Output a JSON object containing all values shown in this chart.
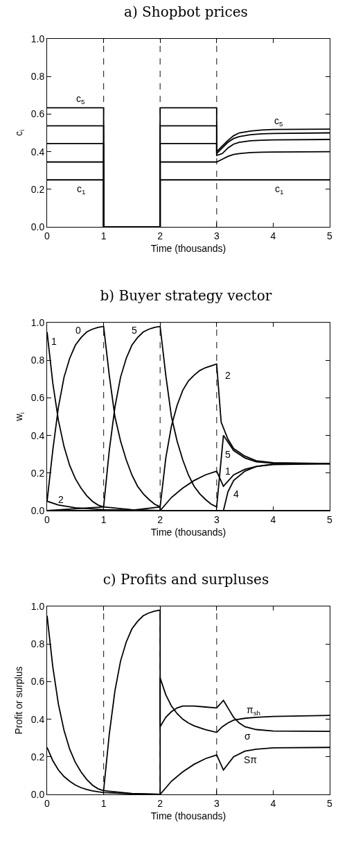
{
  "chart_data": [
    {
      "type": "line",
      "title": "a) Shopbot prices",
      "xlabel": "Time (thousands)",
      "ylabel": "c$_{i}$",
      "xlim": [
        0,
        5
      ],
      "xticks": [
        0,
        1,
        2,
        3,
        4,
        5
      ],
      "ylim": [
        0,
        1
      ],
      "yticks": [
        {
          "value": 0,
          "label": "0.0"
        },
        {
          "value": 0.2,
          "label": "0.2"
        },
        {
          "value": 0.4,
          "label": "0.4"
        },
        {
          "value": 0.6,
          "label": "0.6"
        },
        {
          "value": 0.8,
          "label": "0.8"
        },
        {
          "value": 1,
          "label": "1.0"
        }
      ],
      "series": [
        {
          "color": "#000000",
          "x": [
            0,
            1,
            1,
            2,
            2,
            3,
            3,
            3.1,
            3.2,
            3.3,
            3.4,
            3.6,
            3.8,
            4,
            5
          ],
          "values": [
            0.633,
            0.633,
            0,
            0,
            0.633,
            0.633,
            0.4,
            0.43,
            0.46,
            0.485,
            0.5,
            0.51,
            0.515,
            0.518,
            0.52
          ]
        },
        {
          "color": "#000000",
          "x": [
            0,
            1,
            1,
            2,
            2,
            3,
            3,
            3.1,
            3.2,
            3.3,
            3.4,
            3.6,
            3.8,
            4,
            5
          ],
          "values": [
            0.537,
            0.537,
            0,
            0,
            0.537,
            0.537,
            0.39,
            0.42,
            0.45,
            0.47,
            0.48,
            0.49,
            0.495,
            0.497,
            0.5
          ]
        },
        {
          "color": "#000000",
          "x": [
            0,
            1,
            1,
            2,
            2,
            3,
            3,
            3.1,
            3.2,
            3.3,
            3.4,
            3.6,
            3.8,
            4,
            5
          ],
          "values": [
            0.443,
            0.443,
            0,
            0,
            0.443,
            0.443,
            0.38,
            0.39,
            0.42,
            0.44,
            0.45,
            0.458,
            0.461,
            0.463,
            0.465
          ]
        },
        {
          "color": "#000000",
          "x": [
            0,
            1,
            1,
            2,
            2,
            3,
            3,
            3.1,
            3.2,
            3.3,
            3.4,
            3.6,
            3.8,
            4,
            5
          ],
          "values": [
            0.345,
            0.345,
            0,
            0,
            0.345,
            0.345,
            0.345,
            0.36,
            0.375,
            0.385,
            0.39,
            0.395,
            0.397,
            0.398,
            0.4
          ]
        },
        {
          "color": "#000000",
          "x": [
            0,
            1,
            1,
            2,
            2,
            5
          ],
          "values": [
            0.25,
            0.25,
            0,
            0,
            0.25,
            0.25
          ]
        }
      ],
      "ref_lines": [
        {
          "axis": "x",
          "value": 1,
          "line_style": "dashed",
          "color": "#333333"
        },
        {
          "axis": "x",
          "value": 2,
          "line_style": "dashed",
          "color": "#333333"
        },
        {
          "axis": "x",
          "value": 3,
          "line_style": "dashed",
          "color": "#333333"
        }
      ],
      "annotations": [
        "c$_{5}$",
        "c$_{1}$",
        "c$_{5}$",
        "c$_{1}$"
      ]
    },
    {
      "type": "line",
      "title": "b) Buyer strategy vector",
      "xlabel": "Time (thousands)",
      "ylabel": "w$_{i}$",
      "xlim": [
        0,
        5
      ],
      "xticks": [
        0,
        1,
        2,
        3,
        4,
        5
      ],
      "ylim": [
        0,
        1
      ],
      "yticks": [
        {
          "value": 0,
          "label": "0.0"
        },
        {
          "value": 0.2,
          "label": "0.2"
        },
        {
          "value": 0.4,
          "label": "0.4"
        },
        {
          "value": 0.6,
          "label": "0.6"
        },
        {
          "value": 0.8,
          "label": "0.8"
        },
        {
          "value": 1,
          "label": "1.0"
        }
      ],
      "series": [
        {
          "color": "#000000",
          "x": [
            0,
            0.1,
            0.2,
            0.3,
            0.4,
            0.5,
            0.6,
            0.7,
            0.8,
            0.9,
            1,
            1.1,
            1.2,
            1.3,
            1.4,
            1.5,
            1.6,
            1.7,
            1.8,
            1.9,
            2,
            2,
            5
          ],
          "values": [
            0.05,
            0.32,
            0.55,
            0.71,
            0.81,
            0.88,
            0.92,
            0.95,
            0.965,
            0.975,
            0.98,
            0.72,
            0.5,
            0.37,
            0.27,
            0.19,
            0.13,
            0.09,
            0.06,
            0.035,
            0.02,
            0,
            0
          ]
        },
        {
          "color": "#000000",
          "x": [
            0,
            1,
            1.1,
            1.2,
            1.3,
            1.4,
            1.5,
            1.6,
            1.7,
            1.8,
            1.9,
            2,
            2.1,
            2.2,
            2.3,
            2.4,
            2.5,
            2.6,
            2.7,
            2.8,
            2.9,
            3,
            3.12,
            3.3,
            3.5,
            3.7,
            4,
            5
          ],
          "values": [
            0,
            0.02,
            0.32,
            0.55,
            0.71,
            0.81,
            0.88,
            0.92,
            0.95,
            0.965,
            0.975,
            0.98,
            0.72,
            0.5,
            0.37,
            0.27,
            0.19,
            0.13,
            0.09,
            0.06,
            0.035,
            0.02,
            0.4,
            0.32,
            0.28,
            0.26,
            0.252,
            0.25
          ]
        },
        {
          "color": "#000000",
          "x": [
            0,
            0.1,
            0.2,
            0.3,
            0.4,
            0.5,
            0.6,
            0.7,
            0.8,
            0.9,
            1,
            1.5,
            2,
            2.2,
            2.4,
            2.6,
            2.8,
            3,
            3.12,
            3.3,
            3.5,
            3.7,
            4,
            5
          ],
          "values": [
            0.95,
            0.68,
            0.48,
            0.34,
            0.24,
            0.17,
            0.12,
            0.08,
            0.05,
            0.03,
            0.02,
            0.005,
            0,
            0.07,
            0.12,
            0.16,
            0.19,
            0.21,
            0.13,
            0.19,
            0.22,
            0.235,
            0.245,
            0.25
          ]
        },
        {
          "color": "#000000",
          "x": [
            0,
            0.2,
            0.5,
            1,
            1.5,
            2,
            2.1,
            2.2,
            2.3,
            2.4,
            2.5,
            2.6,
            2.7,
            2.8,
            2.9,
            3,
            3.08,
            3.2,
            3.3,
            3.5,
            3.7,
            4,
            5
          ],
          "values": [
            0.05,
            0.03,
            0.015,
            0.005,
            0.002,
            0.02,
            0.28,
            0.45,
            0.56,
            0.64,
            0.69,
            0.72,
            0.745,
            0.76,
            0.77,
            0.78,
            0.47,
            0.38,
            0.33,
            0.29,
            0.265,
            0.255,
            0.25
          ]
        },
        {
          "color": "#000000",
          "x": [
            0,
            3.12,
            3.2,
            3.3,
            3.5,
            3.7,
            4,
            5
          ],
          "values": [
            0,
            0,
            0.1,
            0.16,
            0.21,
            0.235,
            0.248,
            0.25
          ]
        }
      ],
      "ref_lines": [
        {
          "axis": "x",
          "value": 1,
          "line_style": "dashed",
          "color": "#333333"
        },
        {
          "axis": "x",
          "value": 2,
          "line_style": "dashed",
          "color": "#333333"
        },
        {
          "axis": "x",
          "value": 3,
          "line_style": "dashed",
          "color": "#333333"
        }
      ],
      "annotations": [
        "1",
        "0",
        "5",
        "2",
        "2",
        "5",
        "1",
        "4"
      ]
    },
    {
      "type": "line",
      "title": "c) Profits and surpluses",
      "xlabel": "Time (thousands)",
      "ylabel": "Profit or surplus",
      "xlim": [
        0,
        5
      ],
      "xticks": [
        0,
        1,
        2,
        3,
        4,
        5
      ],
      "ylim": [
        0,
        1
      ],
      "yticks": [
        {
          "value": 0,
          "label": "0.0"
        },
        {
          "value": 0.2,
          "label": "0.2"
        },
        {
          "value": 0.4,
          "label": "0.4"
        },
        {
          "value": 0.6,
          "label": "0.6"
        },
        {
          "value": 0.8,
          "label": "0.8"
        },
        {
          "value": 1,
          "label": "1.0"
        }
      ],
      "series": [
        {
          "color": "#000000",
          "x": [
            0,
            0.1,
            0.2,
            0.3,
            0.4,
            0.5,
            0.6,
            0.7,
            0.8,
            0.9,
            1,
            1.5,
            2,
            2.2,
            2.4,
            2.6,
            2.8,
            3,
            3.12,
            3.3,
            3.5,
            3.7,
            4,
            5
          ],
          "values": [
            0.95,
            0.68,
            0.48,
            0.34,
            0.24,
            0.17,
            0.12,
            0.08,
            0.05,
            0.03,
            0.02,
            0.005,
            0,
            0.07,
            0.12,
            0.16,
            0.19,
            0.21,
            0.13,
            0.2,
            0.23,
            0.24,
            0.248,
            0.25
          ]
        },
        {
          "color": "#000000",
          "x": [
            0,
            0.1,
            0.2,
            0.3,
            0.4,
            0.5,
            0.6,
            0.7,
            0.8,
            0.9,
            1,
            1.5,
            2,
            2,
            2.1,
            2.2,
            2.3,
            2.4,
            2.5,
            2.6,
            2.8,
            3,
            3.1,
            3.2,
            3.3,
            3.5,
            3.7,
            4,
            5
          ],
          "values": [
            0.25,
            0.18,
            0.13,
            0.095,
            0.07,
            0.05,
            0.036,
            0.026,
            0.019,
            0.014,
            0.01,
            0.003,
            0,
            0.62,
            0.53,
            0.47,
            0.43,
            0.4,
            0.38,
            0.365,
            0.345,
            0.33,
            0.36,
            0.38,
            0.395,
            0.405,
            0.41,
            0.415,
            0.42
          ]
        },
        {
          "color": "#000000",
          "x": [
            1,
            1.1,
            1.2,
            1.3,
            1.4,
            1.5,
            1.6,
            1.7,
            1.8,
            1.9,
            2,
            2,
            2.1,
            2.2,
            2.3,
            2.4,
            2.6,
            2.8,
            3,
            3.12,
            3.2,
            3.3,
            3.4,
            3.5,
            3.7,
            4,
            5
          ],
          "values": [
            0.02,
            0.32,
            0.55,
            0.71,
            0.81,
            0.88,
            0.92,
            0.95,
            0.965,
            0.975,
            0.98,
            0.36,
            0.41,
            0.44,
            0.46,
            0.47,
            0.47,
            0.465,
            0.46,
            0.5,
            0.46,
            0.41,
            0.38,
            0.36,
            0.345,
            0.337,
            0.335
          ]
        }
      ],
      "ref_lines": [
        {
          "axis": "x",
          "value": 1,
          "line_style": "dashed",
          "color": "#333333"
        },
        {
          "axis": "x",
          "value": 2,
          "line_style": "dashed",
          "color": "#333333"
        },
        {
          "axis": "x",
          "value": 3,
          "line_style": "dashed",
          "color": "#333333"
        }
      ],
      "annotations": [
        "π$_{sh}$",
        "σ",
        "Sπ"
      ]
    }
  ]
}
